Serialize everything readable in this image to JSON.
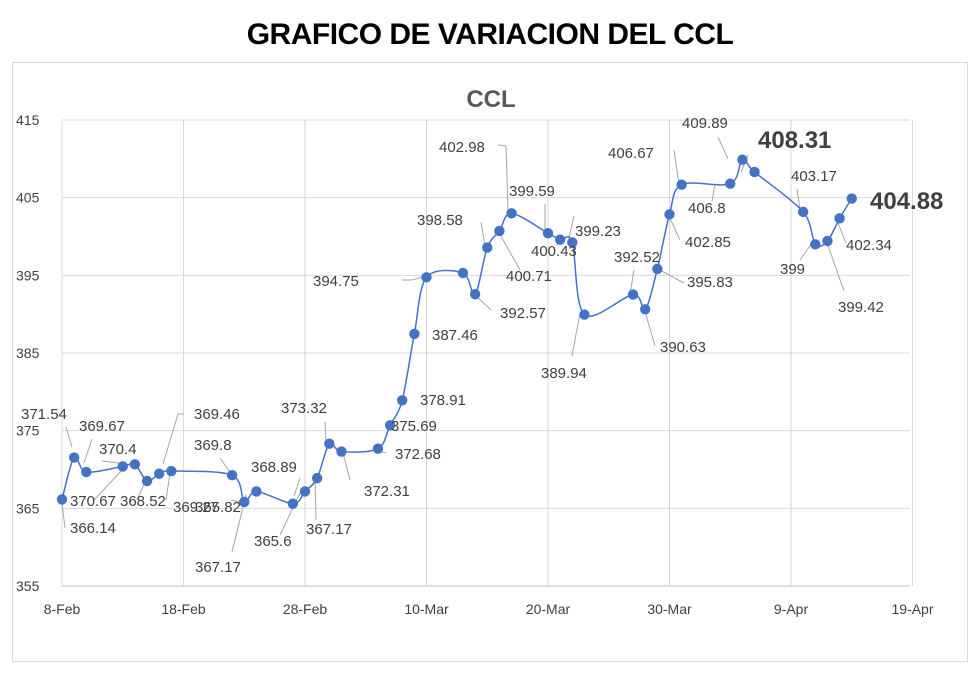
{
  "page_title": "GRAFICO DE VARIACION DEL CCL",
  "chart_data": {
    "type": "line",
    "title": "CCL",
    "xlabel": "",
    "ylabel": "",
    "ylim": [
      355,
      415
    ],
    "yticks": [
      355,
      365,
      375,
      385,
      395,
      405,
      415
    ],
    "xlim_labels": [
      "8-Feb",
      "18-Feb",
      "28-Feb",
      "10-Mar",
      "20-Mar",
      "30-Mar",
      "9-Apr",
      "19-Apr"
    ],
    "grid": true,
    "legend": "none",
    "colors": {
      "line": "#4472c4",
      "marker": "#4472c4",
      "grid": "#d9d9d9",
      "label": "#404040"
    },
    "series": [
      {
        "x": [
          "8-Feb",
          "9-Feb",
          "10-Feb",
          "13-Feb",
          "14-Feb",
          "15-Feb",
          "16-Feb",
          "17-Feb",
          "22-Feb",
          "23-Feb",
          "24-Feb",
          "27-Feb",
          "28-Feb",
          "1-Mar",
          "2-Mar",
          "3-Mar",
          "6-Mar",
          "7-Mar",
          "8-Mar",
          "9-Mar",
          "10-Mar",
          "13-Mar",
          "14-Mar",
          "15-Mar",
          "16-Mar",
          "17-Mar",
          "20-Mar",
          "21-Mar",
          "22-Mar",
          "23-Mar",
          "27-Mar",
          "28-Mar",
          "29-Mar",
          "30-Mar",
          "31-Mar",
          "4-Apr",
          "5-Apr",
          "6-Apr",
          "10-Apr",
          "11-Apr",
          "12-Apr",
          "13-Apr",
          "14-Apr"
        ],
        "day_index": [
          0,
          1,
          2,
          5,
          6,
          7,
          8,
          9,
          14,
          15,
          16,
          19,
          20,
          21,
          22,
          23,
          26,
          27,
          28,
          29,
          30,
          33,
          34,
          35,
          36,
          37,
          40,
          41,
          42,
          43,
          47,
          48,
          49,
          50,
          51,
          55,
          56,
          57,
          61,
          62,
          63,
          64,
          65
        ],
        "values": [
          366.14,
          371.54,
          369.67,
          370.4,
          370.67,
          368.52,
          369.46,
          369.8,
          369.27,
          365.82,
          367.17,
          365.6,
          367.17,
          368.89,
          373.32,
          372.31,
          372.68,
          375.69,
          378.91,
          387.46,
          394.75,
          395.3,
          392.57,
          398.58,
          400.71,
          402.98,
          400.43,
          399.59,
          399.23,
          389.94,
          392.52,
          390.63,
          395.83,
          402.85,
          406.67,
          406.8,
          409.89,
          408.31,
          403.17,
          399,
          399.42,
          402.34,
          404.88
        ]
      }
    ],
    "data_labels": [
      {
        "text": "371.54",
        "bold": false
      },
      {
        "text": "369.67",
        "bold": false
      },
      {
        "text": "370.4",
        "bold": false
      },
      {
        "text": "370.67",
        "bold": false
      },
      {
        "text": "366.14",
        "bold": false
      },
      {
        "text": "368.52",
        "bold": false
      },
      {
        "text": "369.46",
        "bold": false
      },
      {
        "text": "369.27",
        "bold": false
      },
      {
        "text": "369.8",
        "bold": false
      },
      {
        "text": "365.82",
        "bold": false
      },
      {
        "text": "367.17",
        "bold": false
      },
      {
        "text": "368.89",
        "bold": false
      },
      {
        "text": "365.6",
        "bold": false
      },
      {
        "text": "373.32",
        "bold": false
      },
      {
        "text": "367.17",
        "bold": false
      },
      {
        "text": "372.31",
        "bold": false
      },
      {
        "text": "372.68",
        "bold": false
      },
      {
        "text": "375.69",
        "bold": false
      },
      {
        "text": "378.91",
        "bold": false
      },
      {
        "text": "387.46",
        "bold": false
      },
      {
        "text": "394.75",
        "bold": false
      },
      {
        "text": "392.57",
        "bold": false
      },
      {
        "text": "398.58",
        "bold": false
      },
      {
        "text": "400.71",
        "bold": false
      },
      {
        "text": "402.98",
        "bold": false
      },
      {
        "text": "399.59",
        "bold": false
      },
      {
        "text": "400.43",
        "bold": false
      },
      {
        "text": "399.23",
        "bold": false
      },
      {
        "text": "389.94",
        "bold": false
      },
      {
        "text": "392.52",
        "bold": false
      },
      {
        "text": "390.63",
        "bold": false
      },
      {
        "text": "395.83",
        "bold": false
      },
      {
        "text": "402.85",
        "bold": false
      },
      {
        "text": "406.67",
        "bold": false
      },
      {
        "text": "406.8",
        "bold": false
      },
      {
        "text": "409.89",
        "bold": false
      },
      {
        "text": "408.31",
        "bold": true
      },
      {
        "text": "403.17",
        "bold": false
      },
      {
        "text": "399",
        "bold": false
      },
      {
        "text": "399.42",
        "bold": false
      },
      {
        "text": "402.34",
        "bold": false
      },
      {
        "text": "404.88",
        "bold": true
      }
    ]
  }
}
